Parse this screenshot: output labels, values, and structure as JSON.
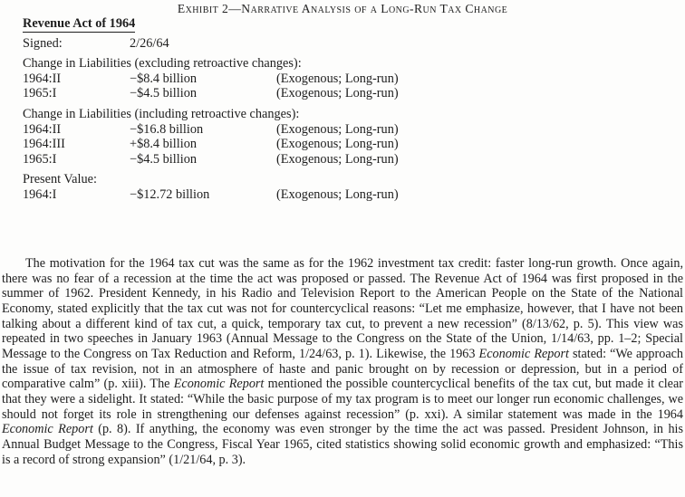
{
  "exhibit": {
    "title": "Exhibit 2—Narrative Analysis of a Long-Run Tax Change",
    "act_title": "Revenue Act of 1964",
    "signed_label": "Signed:",
    "signed_value": "2/26/64",
    "sections": [
      {
        "heading": "Change in Liabilities (excluding retroactive changes):",
        "rows": [
          {
            "period": "1964:II",
            "amount": "−$8.4 billion",
            "classification": "(Exogenous; Long-run)"
          },
          {
            "period": "1965:I",
            "amount": "−$4.5 billion",
            "classification": "(Exogenous; Long-run)"
          }
        ]
      },
      {
        "heading": "Change in Liabilities (including retroactive changes):",
        "rows": [
          {
            "period": "1964:II",
            "amount": "−$16.8 billion",
            "classification": "(Exogenous; Long-run)"
          },
          {
            "period": "1964:III",
            "amount": "+$8.4 billion",
            "classification": "(Exogenous; Long-run)"
          },
          {
            "period": "1965:I",
            "amount": "−$4.5 billion",
            "classification": "(Exogenous; Long-run)"
          }
        ]
      },
      {
        "heading": "Present Value:",
        "rows": [
          {
            "period": "1964:I",
            "amount": "−$12.72 billion",
            "classification": "(Exogenous; Long-run)"
          }
        ]
      }
    ]
  },
  "body": {
    "runs": [
      {
        "style": "regular",
        "text": "The motivation for the 1964 tax cut was the same as for the 1962 investment tax credit: faster long-run growth. Once again, there was no fear of a recession at the time the act was proposed or passed. The Revenue Act of 1964 was first proposed in the summer of 1962. President Kennedy, in his Radio and Television Report to the American People on the State of the National Economy, stated explicitly that the tax cut was not for countercyclical reasons: “Let me emphasize, however, that I have not been talking about a different kind of tax cut, a quick, temporary tax cut, to prevent a new recession” (8/13/62, p. 5). This view was repeated in two speeches in January 1963 (Annual Message to the Congress on the State of the Union, 1/14/63, pp. 1–2; Special Message to the Congress on Tax Reduction and Reform, 1/24/63, p. 1). Likewise, the 1963 "
      },
      {
        "style": "italic",
        "text": "Economic Report"
      },
      {
        "style": "regular",
        "text": " stated: “We approach the issue of tax revision, not in an atmosphere of haste and panic brought on by recession or depression, but in a period of comparative calm” (p. xiii). The "
      },
      {
        "style": "italic",
        "text": "Economic Report"
      },
      {
        "style": "regular",
        "text": " mentioned the possible countercyclical benefits of the tax cut, but made it clear that they were a sidelight. It stated: “While the basic purpose of my tax program is to meet our longer run economic challenges, we should not forget its role in strengthening our defenses against recession” (p. xxi). A similar statement was made in the 1964 "
      },
      {
        "style": "italic",
        "text": "Economic Report"
      },
      {
        "style": "regular",
        "text": " (p. 8). If anything, the economy was even stronger by the time the act was passed. President Johnson, in his Annual Budget Message to the Congress, Fiscal Year 1965, cited statistics showing solid economic growth and emphasized: “This is a record of strong expansion” (1/21/64, p. 3)."
      }
    ]
  }
}
